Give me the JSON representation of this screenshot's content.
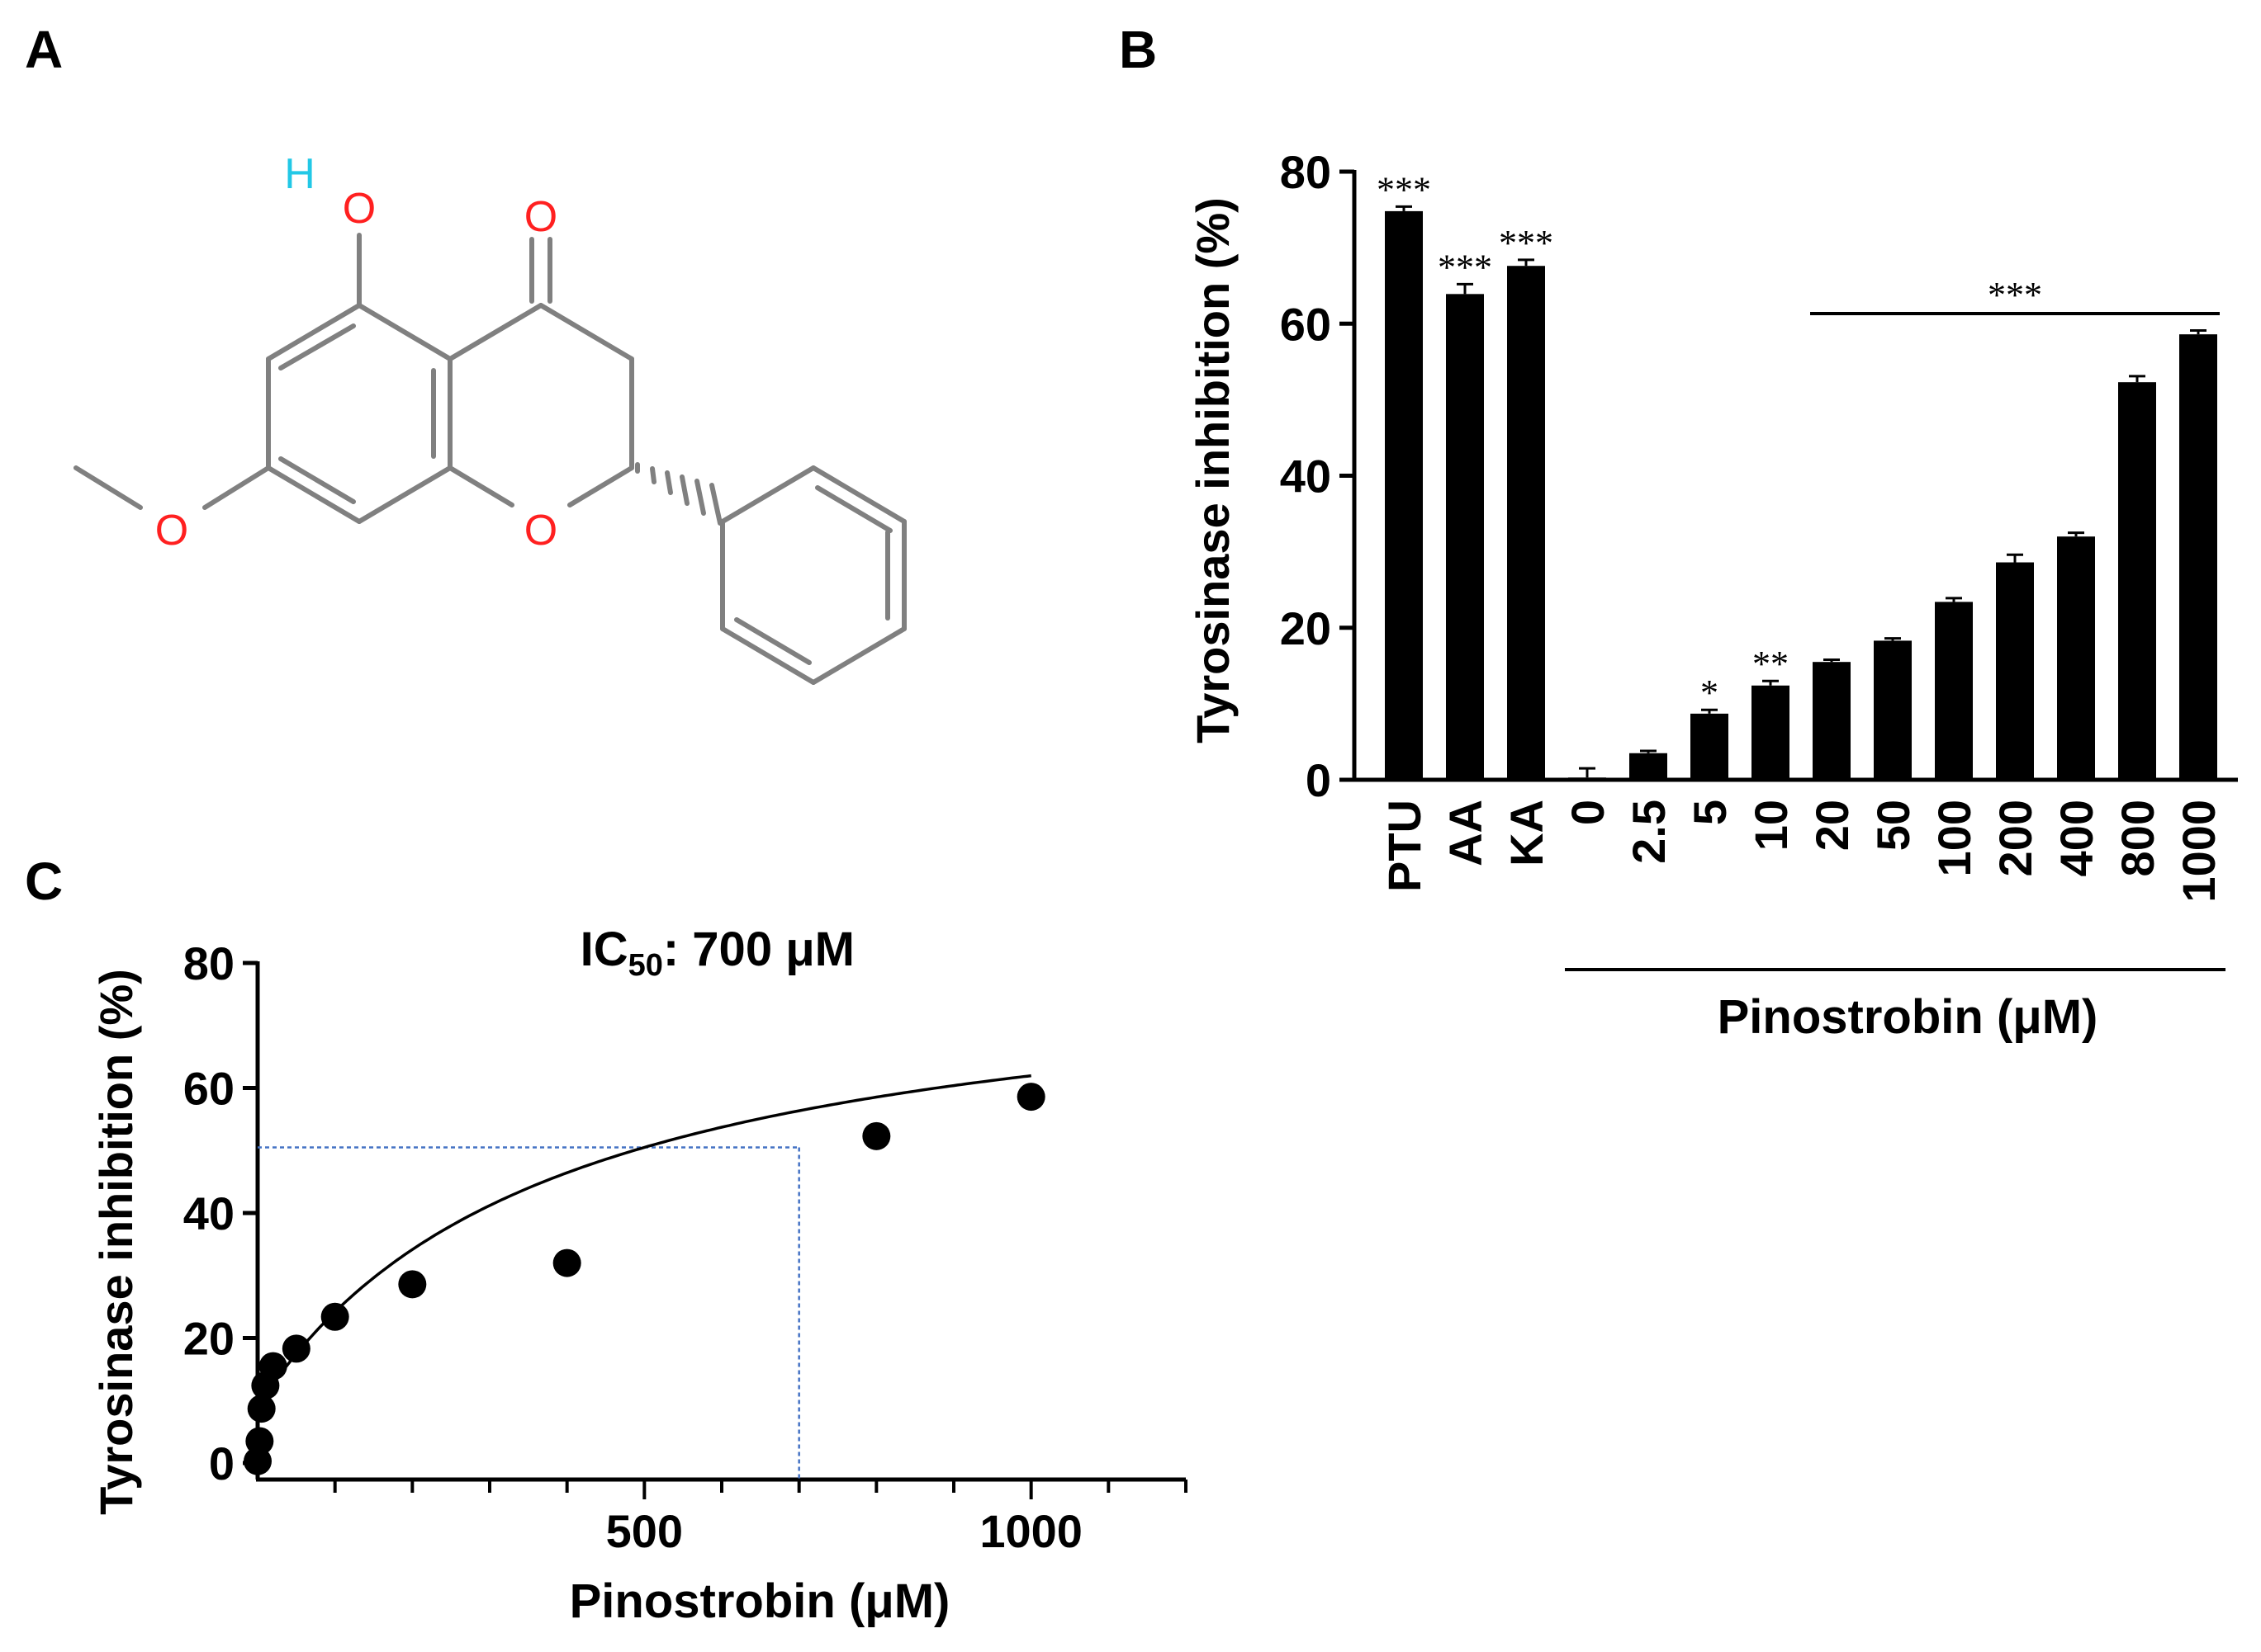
{
  "panels": {
    "a": "A",
    "b": "B",
    "c": "C"
  },
  "molecule": {
    "atoms": {
      "o_carbonyl": "O",
      "o_hydroxyl": "O",
      "h_hydroxyl": "H",
      "o_ring": "O",
      "o_methoxy": "O"
    },
    "colors": {
      "oxygen": "#ff2020",
      "hydrogen": "#22c8e6",
      "bond": "#808080"
    }
  },
  "chart_data": [
    {
      "type": "bar",
      "panel": "B",
      "ylabel": "Tyrosinase inhibition (%)",
      "xlabel": "Pinostrobin (μM)",
      "ylim": [
        0,
        80
      ],
      "yticks": [
        0,
        20,
        40,
        60,
        80
      ],
      "categories": [
        "PTU",
        "AA",
        "KA",
        "0",
        "2.5",
        "5",
        "10",
        "20",
        "50",
        "100",
        "200",
        "400",
        "800",
        "1000"
      ],
      "values": [
        74.8,
        63.9,
        67.6,
        0.3,
        3.5,
        8.7,
        12.4,
        15.5,
        18.3,
        23.4,
        28.6,
        32.0,
        52.3,
        58.6
      ],
      "errors": [
        0.6,
        1.3,
        0.8,
        1.2,
        0.3,
        0.5,
        0.6,
        0.3,
        0.3,
        0.5,
        1.0,
        0.5,
        0.8,
        0.5
      ],
      "significance": [
        "***",
        "***",
        "***",
        "",
        "",
        "*",
        "**",
        "",
        "",
        "",
        "",
        "",
        "",
        ""
      ],
      "group_significance": {
        "label": "***",
        "from": "20",
        "to": "1000"
      },
      "bar_color": "#000000"
    },
    {
      "type": "scatter",
      "panel": "C",
      "title": "IC",
      "title_sub": "50",
      "title_rest": ": 700 μM",
      "ylabel": "Tyrosinase inhibition (%)",
      "xlabel": "Pinostrobin (μM)",
      "xlim": [
        0,
        1200
      ],
      "ylim": [
        0,
        80
      ],
      "xticks": [
        500,
        1000
      ],
      "yticks": [
        0,
        20,
        40,
        60,
        80
      ],
      "points": [
        {
          "x": 0,
          "y": 0.3
        },
        {
          "x": 2.5,
          "y": 3.5
        },
        {
          "x": 5,
          "y": 8.7
        },
        {
          "x": 10,
          "y": 12.4
        },
        {
          "x": 20,
          "y": 15.5
        },
        {
          "x": 50,
          "y": 18.3
        },
        {
          "x": 100,
          "y": 23.4
        },
        {
          "x": 200,
          "y": 28.6
        },
        {
          "x": 400,
          "y": 32.0
        },
        {
          "x": 800,
          "y": 52.3
        },
        {
          "x": 1000,
          "y": 58.6
        }
      ],
      "fit": {
        "model": "a*x/(b+x)+c",
        "a": 73.2,
        "b": 382,
        "c": 9,
        "x_range": [
          5,
          1000
        ]
      },
      "ic50": {
        "x": 700,
        "y": 50.5,
        "line_color": "#4472c4"
      },
      "point_color": "#000000"
    }
  ]
}
